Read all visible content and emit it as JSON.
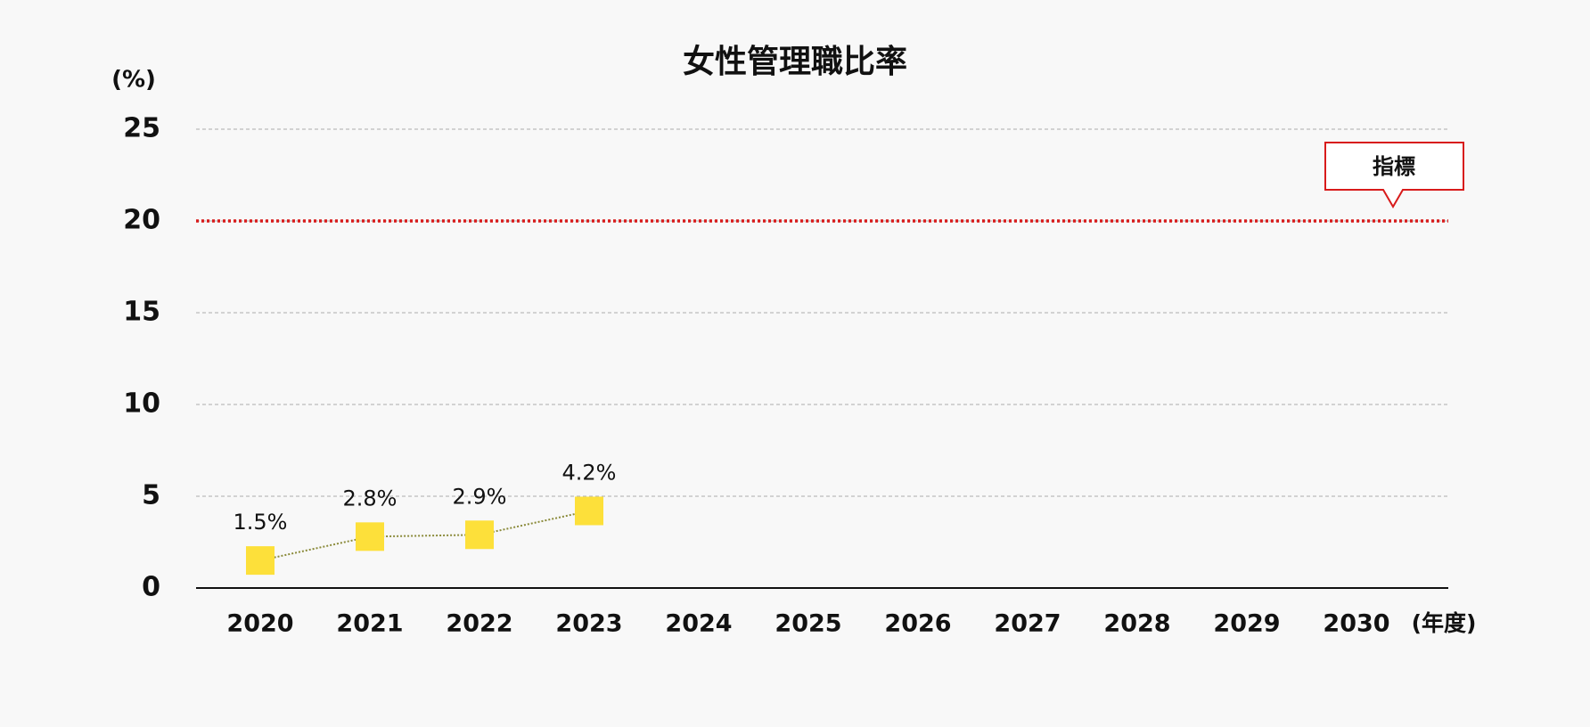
{
  "chart_data": {
    "type": "line",
    "title": "女性管理職比率",
    "y_label": "(%)",
    "x_label": "(年度)",
    "categories": [
      "2020",
      "2021",
      "2022",
      "2023",
      "2024",
      "2025",
      "2026",
      "2027",
      "2028",
      "2029",
      "2030"
    ],
    "values": [
      1.5,
      2.8,
      2.9,
      4.2,
      null,
      null,
      null,
      null,
      null,
      null,
      null
    ],
    "value_labels": [
      "1.5%",
      "2.8%",
      "2.9%",
      "4.2%",
      null,
      null,
      null,
      null,
      null,
      null,
      null
    ],
    "color": "#fde03a",
    "line_color": "#8a8a3a",
    "ylim": [
      0,
      25
    ],
    "yticks": [
      0,
      5,
      10,
      15,
      20,
      25
    ],
    "grid": true,
    "target": {
      "value": 20,
      "label": "指標",
      "color": "#d81b1b"
    }
  }
}
